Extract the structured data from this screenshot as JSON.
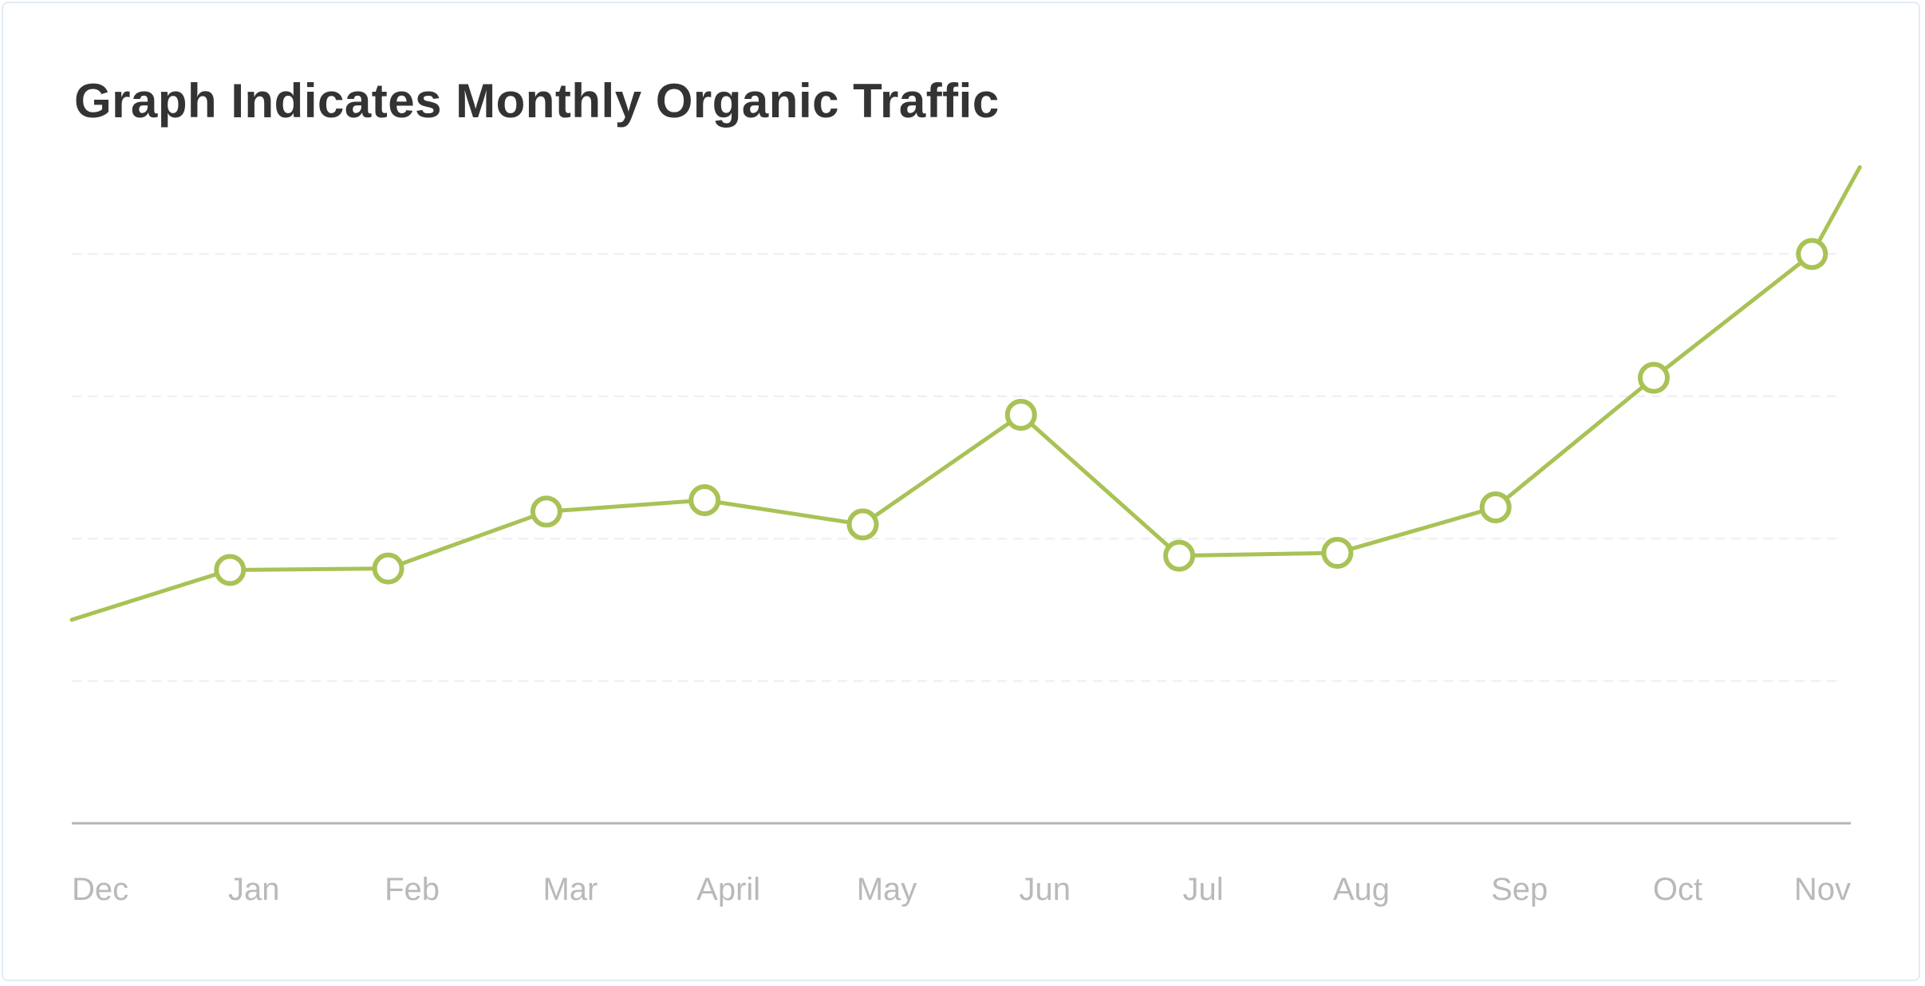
{
  "chart_data": {
    "type": "line",
    "title": "Graph Indicates Monthly Organic Traffic",
    "xlabel": "",
    "ylabel": "",
    "categories": [
      "Dec",
      "Jan",
      "Feb",
      "Mar",
      "April",
      "May",
      "Jun",
      "Jul",
      "Aug",
      "Sep",
      "Oct",
      "Nov"
    ],
    "series": [
      {
        "values": [
          143,
          178,
          179,
          219,
          227,
          210,
          287,
          188,
          190,
          222,
          313,
          400
        ],
        "markers": [
          false,
          true,
          true,
          true,
          true,
          true,
          true,
          true,
          true,
          true,
          true,
          true
        ],
        "end_value": 461
      }
    ],
    "ylim": [
      0,
      500
    ],
    "gridlines": [
      100,
      200,
      300,
      400
    ],
    "grid": true,
    "legend": "none",
    "colors": {
      "series": "#a8c256",
      "grid": "#eeeeee",
      "axis": "#b5b5b5",
      "tick_text": "#b9b9b9",
      "title": "#333333",
      "border": "#e3ebf3"
    }
  }
}
